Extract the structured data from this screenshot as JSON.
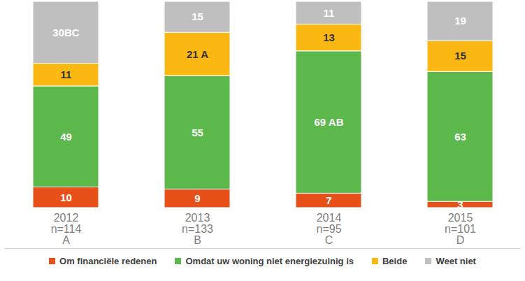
{
  "chart_data": {
    "type": "bar",
    "stacked": true,
    "categories": [
      "2012\nn=114\nA",
      "2013\nn=133\nB",
      "2014\nn=95\nC",
      "2015\nn=101\nD"
    ],
    "series": [
      {
        "name": "Om financiële redenen",
        "color": "#e8501a",
        "values": [
          10,
          9,
          7,
          3
        ]
      },
      {
        "name": "Omdat uw woning niet energiezuinig is",
        "color": "#5cb84a",
        "values": [
          49,
          55,
          69,
          63
        ],
        "value_labels": [
          "49",
          "55",
          "69 AB",
          "63"
        ]
      },
      {
        "name": "Beide",
        "color": "#fbb812",
        "values": [
          11,
          21,
          13,
          15
        ],
        "value_labels": [
          "11",
          "21 A",
          "13",
          "15"
        ]
      },
      {
        "name": "Weet niet",
        "color": "#bfbfbf",
        "values": [
          30,
          15,
          11,
          19
        ],
        "value_labels": [
          "30BC",
          "15",
          "11",
          "19"
        ]
      }
    ],
    "ylim": [
      0,
      100
    ],
    "data_labels": true,
    "tick_labels": "x",
    "legend": "bottom"
  }
}
